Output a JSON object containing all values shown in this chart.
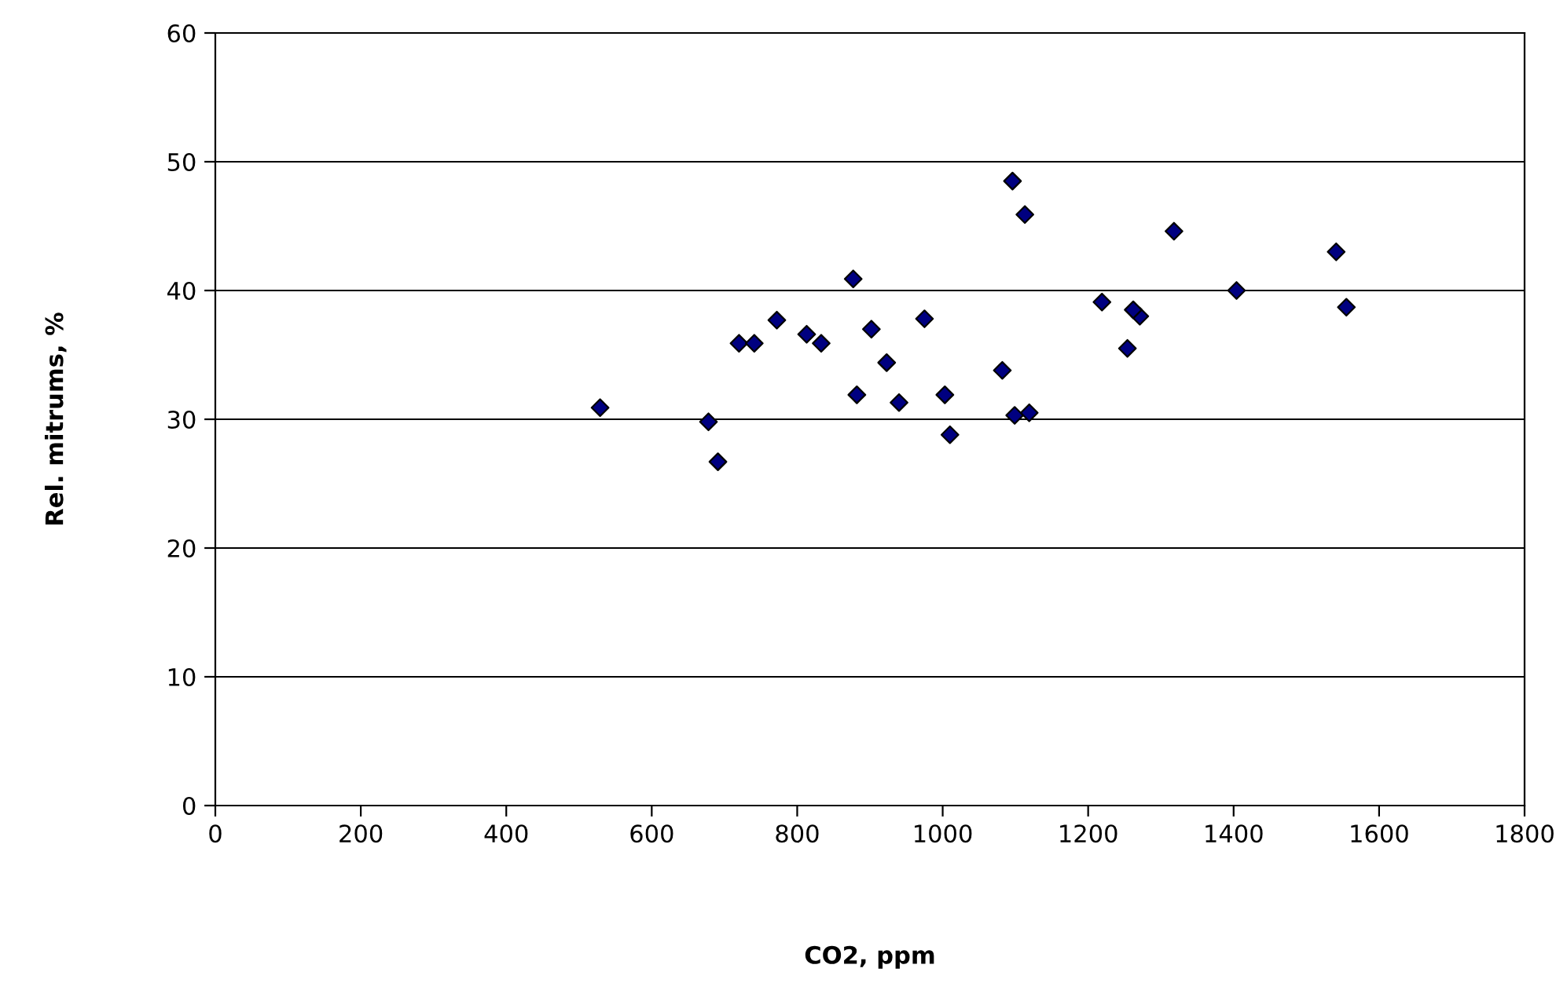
{
  "chart_data": {
    "type": "scatter",
    "xlabel": "CO2, ppm",
    "ylabel": "Rel. mitrums, %",
    "x": [
      529,
      678,
      691,
      720,
      741,
      772,
      813,
      833,
      877,
      882,
      902,
      923,
      940,
      975,
      1003,
      1010,
      1082,
      1096,
      1113,
      1099,
      1119,
      1219,
      1271,
      1262,
      1254,
      1318,
      1404,
      1541,
      1555
    ],
    "series": [
      {
        "color": "#000080",
        "values": [
          30.9,
          29.8,
          26.7,
          35.9,
          35.9,
          37.7,
          36.6,
          35.9,
          40.9,
          31.9,
          37.0,
          34.4,
          31.3,
          37.8,
          31.9,
          28.8,
          33.8,
          48.5,
          45.9,
          30.3,
          30.5,
          39.1,
          38.0,
          38.5,
          35.5,
          44.6,
          40.0,
          43.0,
          38.7
        ]
      }
    ],
    "xlim": [
      0,
      1800
    ],
    "ylim": [
      0,
      60
    ],
    "xticks": [
      0,
      200,
      400,
      600,
      800,
      1000,
      1200,
      1400,
      1600,
      1800
    ],
    "yticks": [
      0,
      10,
      20,
      30,
      40,
      50,
      60
    ],
    "grid": "y",
    "legend": false,
    "marker": "diamond"
  }
}
